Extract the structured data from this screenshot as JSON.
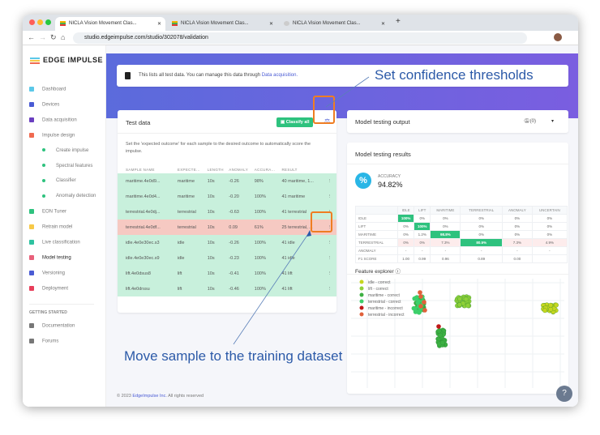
{
  "browser": {
    "tabs": [
      "NICLA Vision Movement Clas...",
      "NICLA Vision Movement Clas...",
      "NICLA Vision Movement Clas..."
    ],
    "url": "studio.edgeimpulse.com/studio/302078/validation"
  },
  "sidebar": {
    "logo": "EDGE IMPULSE",
    "items": [
      {
        "label": "Dashboard",
        "color": "#5bc8e8"
      },
      {
        "label": "Devices",
        "color": "#4a5bd4"
      },
      {
        "label": "Data acquisition",
        "color": "#6a3fc0"
      },
      {
        "label": "Impulse design",
        "color": "#f06a50"
      },
      {
        "label": "Create impulse",
        "sub": true
      },
      {
        "label": "Spectral features",
        "sub": true
      },
      {
        "label": "Classifier",
        "sub": true
      },
      {
        "label": "Anomaly detection",
        "sub": true
      },
      {
        "label": "EON Tuner",
        "color": "#2ec27e"
      },
      {
        "label": "Retrain model",
        "color": "#f7c948"
      },
      {
        "label": "Live classification",
        "color": "#2ec2a0"
      },
      {
        "label": "Model testing",
        "color": "#e8607a",
        "active": true
      },
      {
        "label": "Versioning",
        "color": "#4a5bd4"
      },
      {
        "label": "Deployment",
        "color": "#e83e5a"
      }
    ],
    "section": "GETTING STARTED",
    "extra": [
      {
        "label": "Documentation"
      },
      {
        "label": "Forums"
      }
    ]
  },
  "info": {
    "text": "This lists all test data. You can manage this data through ",
    "link": "Data acquisition."
  },
  "test_data": {
    "title": "Test data",
    "classify_all": "Classify all",
    "description": "Set the 'expected outcome' for each sample to the desired outcome to automatically score the impulse.",
    "columns": [
      "SAMPLE NAME",
      "EXPECTE...",
      "LENGTH",
      "ANOMALY",
      "ACCURA...",
      "RESULT",
      ""
    ],
    "rows": [
      {
        "name": "maritime.4e0d9...",
        "expected": "maritime",
        "length": "10s",
        "anomaly": "-0.26",
        "accuracy": "98%",
        "result": "40 maritime, 1...",
        "status": "ok"
      },
      {
        "name": "maritime.4e0d4...",
        "expected": "maritime",
        "length": "10s",
        "anomaly": "-0.20",
        "accuracy": "100%",
        "result": "41 maritime",
        "status": "ok"
      },
      {
        "name": "terrestrial.4e0dj...",
        "expected": "terrestrial",
        "length": "10s",
        "anomaly": "-0.63",
        "accuracy": "100%",
        "result": "41 terrestrial",
        "status": "ok"
      },
      {
        "name": "terrestrial.4e0df...",
        "expected": "terrestrial",
        "length": "10s",
        "anomaly": "0.09",
        "accuracy": "61%",
        "result": "25 terrestrial, ...",
        "status": "bad"
      },
      {
        "name": "idle.4e0e30ec.s3",
        "expected": "idle",
        "length": "10s",
        "anomaly": "-0.26",
        "accuracy": "100%",
        "result": "41 idle",
        "status": "ok"
      },
      {
        "name": "idle.4e0e30ec.s9",
        "expected": "idle",
        "length": "10s",
        "anomaly": "-0.23",
        "accuracy": "100%",
        "result": "41 idle",
        "status": "ok"
      },
      {
        "name": "lift.4e0dsus8",
        "expected": "lift",
        "length": "10s",
        "anomaly": "-0.41",
        "accuracy": "100%",
        "result": "41 lift",
        "status": "ok"
      },
      {
        "name": "lift.4e0drssu",
        "expected": "lift",
        "length": "10s",
        "anomaly": "-0.46",
        "accuracy": "100%",
        "result": "41 lift",
        "status": "ok"
      }
    ]
  },
  "output": {
    "title": "Model testing output",
    "count": "(0)"
  },
  "results": {
    "title": "Model testing results",
    "accuracy_label": "ACCURACY",
    "accuracy": "94.82%",
    "matrix": {
      "columns": [
        "",
        "IDLE",
        "LIFT",
        "MARITIME",
        "TERRESTRIAL",
        "ANOMALY",
        "UNCERTAIN"
      ],
      "rows": [
        [
          "IDLE",
          "100%",
          "0%",
          "0%",
          "0%",
          "0%",
          "0%"
        ],
        [
          "LIFT",
          "0%",
          "100%",
          "0%",
          "0%",
          "0%",
          "0%"
        ],
        [
          "MARITIME",
          "0%",
          "1.2%",
          "98.8%",
          "0%",
          "0%",
          "0%"
        ],
        [
          "TERRESTRIAL",
          "0%",
          "0%",
          "7.3%",
          "80.5%",
          "7.3%",
          "4.9%"
        ],
        [
          "ANOMALY",
          "-",
          "-",
          "-",
          "-",
          "-",
          "-"
        ],
        [
          "F1 SCORE",
          "1.00",
          "0.99",
          "0.96",
          "0.89",
          "0.00",
          ""
        ]
      ]
    },
    "feature_explorer": "Feature explorer",
    "legend": [
      {
        "label": "idle - correct",
        "color": "#c5d61e"
      },
      {
        "label": "lift - correct",
        "color": "#8fd13a"
      },
      {
        "label": "maritime - correct",
        "color": "#3cb043"
      },
      {
        "label": "terrestrial - correct",
        "color": "#3ccf6a"
      },
      {
        "label": "maritime - incorrect",
        "color": "#c01818"
      },
      {
        "label": "terrestrial - incorrect",
        "color": "#e0603a"
      }
    ]
  },
  "footer": {
    "copy": "© 2023 ",
    "link": "EdgeImpulse Inc.",
    "rest": " All rights reserved"
  },
  "annotations": {
    "top": "Set confidence thresholds",
    "bottom": "Move sample to the training dataset"
  }
}
